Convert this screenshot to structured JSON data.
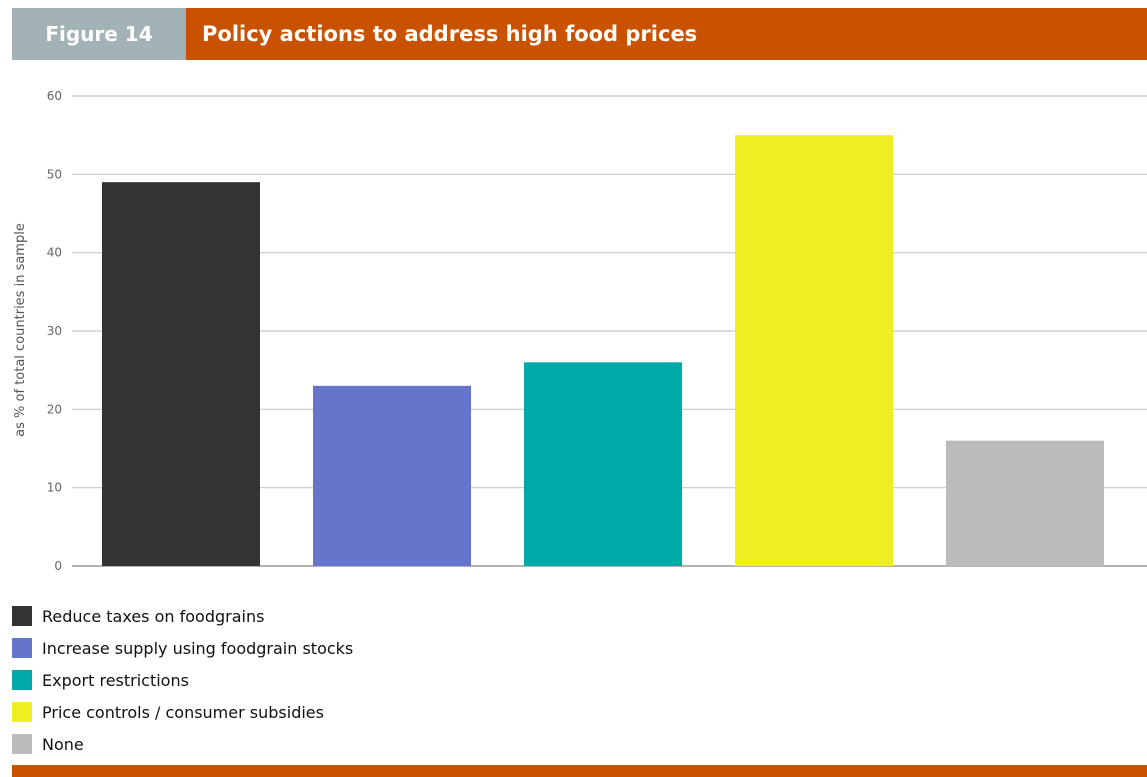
{
  "header": {
    "figure_label": "Figure 14",
    "title": "Policy actions to address high food prices",
    "tab_color": "#a3b2b5",
    "accent_color": "#c95200"
  },
  "chart_data": {
    "type": "bar",
    "title": "Policy actions to address high food prices",
    "ylabel": "as % of total countries in sample",
    "xlabel": "",
    "ylim": [
      0,
      60
    ],
    "yticks": [
      0,
      10,
      20,
      30,
      40,
      50,
      60
    ],
    "grid": true,
    "legend_placement": "bottom",
    "categories": [
      "Reduce taxes on foodgrains",
      "Increase supply using foodgrain stocks",
      "Export restrictions",
      "Price controls / consumer subsidies",
      "None"
    ],
    "values": [
      49,
      23,
      26,
      55,
      16
    ],
    "colors": [
      "#333333",
      "#6674cc",
      "#00a9a9",
      "#eeee22",
      "#bbbbbb"
    ]
  }
}
